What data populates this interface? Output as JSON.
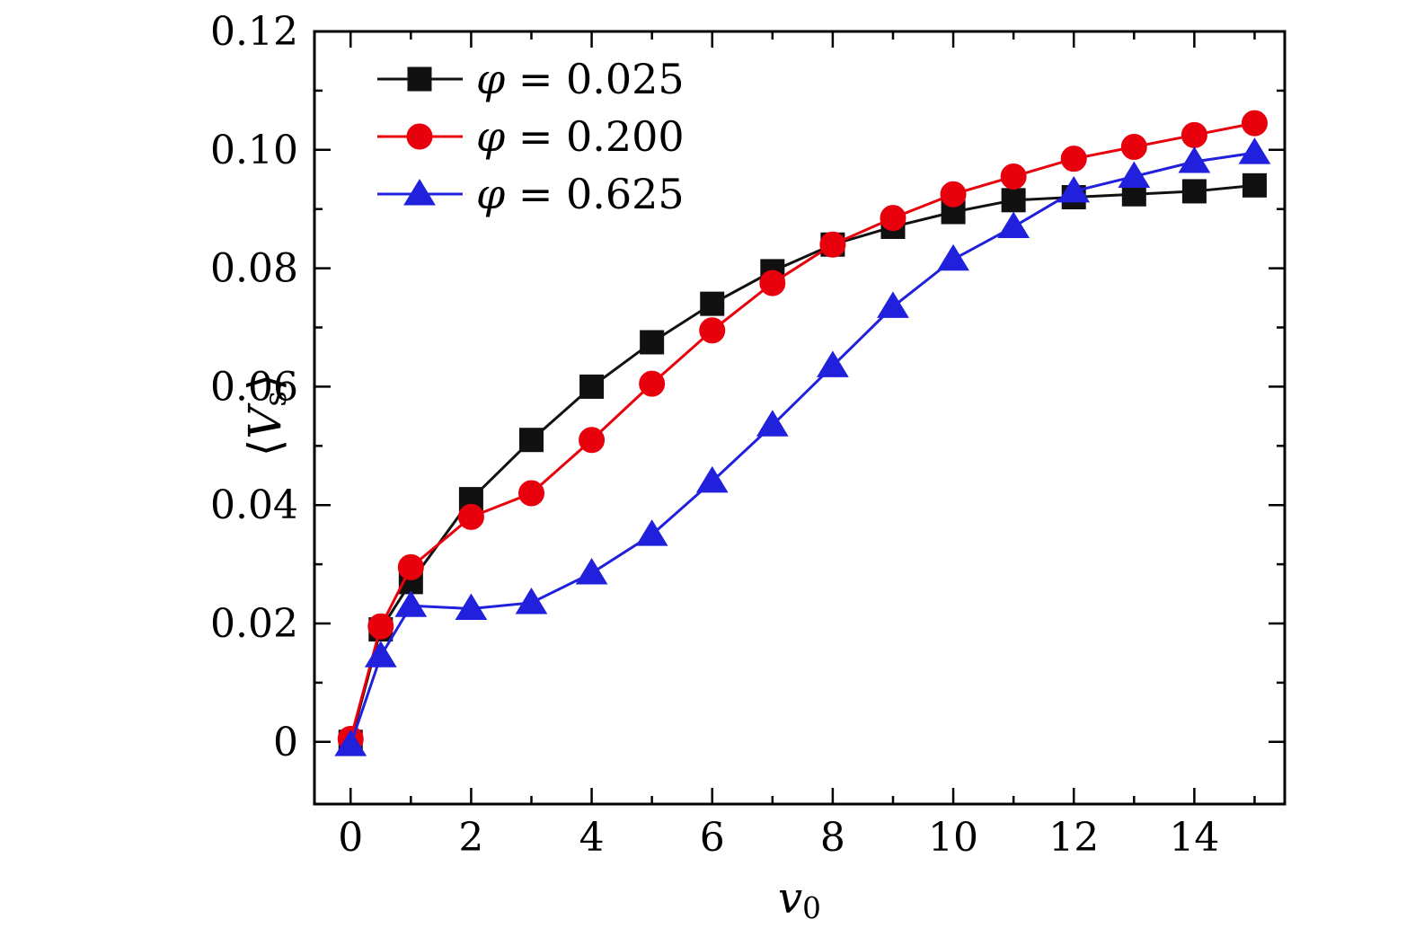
{
  "figure": {
    "background": "#ffffff",
    "frame_color": "#000000"
  },
  "chart_data": {
    "type": "line",
    "title": "",
    "xlabel": "v0",
    "ylabel": "<Vs>",
    "xlabel_parts": {
      "main": "v",
      "sub": "0"
    },
    "ylabel_parts": {
      "open": "⟨",
      "main": "V",
      "sub": "s",
      "close": "⟩"
    },
    "xlim": [
      -0.6,
      15.5
    ],
    "ylim": [
      -0.0105,
      0.12
    ],
    "grid": false,
    "legend_position": "top-left",
    "x_major_ticks": [
      0,
      2,
      4,
      6,
      8,
      10,
      12,
      14
    ],
    "x_minor_ticks": [
      1,
      3,
      5,
      7,
      9,
      11,
      13,
      15
    ],
    "x_tick_labels": [
      "0",
      "2",
      "4",
      "6",
      "8",
      "10",
      "12",
      "14"
    ],
    "y_major_ticks": [
      0,
      0.02,
      0.04,
      0.06,
      0.08,
      0.1,
      0.12
    ],
    "y_minor_ticks": [
      0.01,
      0.03,
      0.05,
      0.07,
      0.09,
      0.11
    ],
    "y_tick_labels": [
      "0",
      "0.02",
      "0.04",
      "0.06",
      "0.08",
      "0.10",
      "0.12"
    ],
    "x": [
      0,
      0.5,
      1,
      2,
      3,
      4,
      5,
      6,
      7,
      8,
      9,
      10,
      11,
      12,
      13,
      14,
      15
    ],
    "series": [
      {
        "name": "φ = 0.025",
        "marker": "square",
        "color": "#111111",
        "values": [
          0.0,
          0.019,
          0.027,
          0.041,
          0.051,
          0.06,
          0.0675,
          0.074,
          0.0795,
          0.084,
          0.087,
          0.0895,
          0.0915,
          0.092,
          0.0925,
          0.093,
          0.094
        ]
      },
      {
        "name": "φ = 0.200",
        "marker": "circle",
        "color": "#e8000d",
        "values": [
          0.0005,
          0.0195,
          0.0295,
          0.038,
          0.042,
          0.051,
          0.0605,
          0.0695,
          0.0775,
          0.084,
          0.0885,
          0.0925,
          0.0955,
          0.0985,
          0.1005,
          0.1025,
          0.1045
        ]
      },
      {
        "name": "φ = 0.625",
        "marker": "triangle",
        "color": "#2020dd",
        "values": [
          -0.0005,
          0.0145,
          0.023,
          0.0225,
          0.0235,
          0.0285,
          0.035,
          0.044,
          0.0535,
          0.0635,
          0.0735,
          0.0815,
          0.087,
          0.093,
          0.0955,
          0.098,
          0.0995
        ]
      }
    ]
  }
}
